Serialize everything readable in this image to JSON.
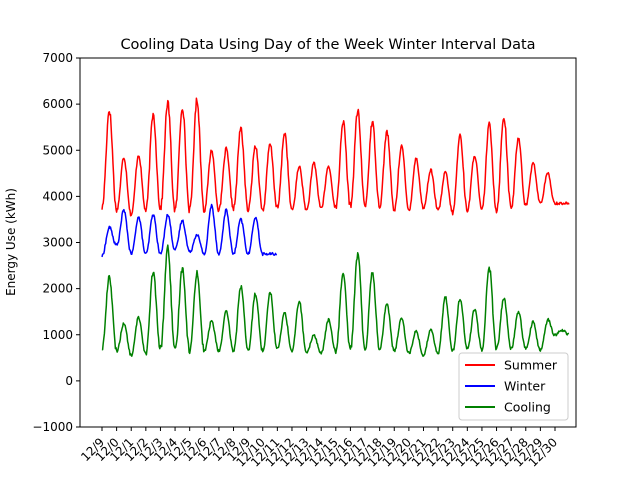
{
  "chart_data": {
    "type": "line",
    "title": "Cooling Data Using Day of the Week Winter Interval Data",
    "xlabel": "",
    "ylabel": "Energy Use (kWh)",
    "ylim": [
      -1000,
      7000
    ],
    "yticks": [
      -1000,
      0,
      1000,
      2000,
      3000,
      4000,
      5000,
      6000,
      7000
    ],
    "xticks": [
      "12/9",
      "12/0",
      "12/1",
      "12/2",
      "12/3",
      "12/4",
      "12/5",
      "12/6",
      "12/7",
      "12/8",
      "12/9",
      "12/10",
      "12/11",
      "12/12",
      "12/13",
      "12/14",
      "12/15",
      "12/16",
      "12/17",
      "12/18",
      "12/19",
      "12/20",
      "12/21",
      "12/22",
      "12/23",
      "12/24",
      "12/25",
      "12/26",
      "12/27",
      "12/28",
      "12/29",
      "12/30"
    ],
    "x_unit": "day",
    "grid": false,
    "legend_position": "lower-right",
    "series": [
      {
        "name": "Summer",
        "color": "#ff0000",
        "x_day_index": [
          0,
          1,
          2,
          3,
          4,
          5,
          6,
          7,
          8,
          9,
          10,
          11,
          12,
          13,
          14,
          15,
          16,
          17,
          18,
          19,
          20,
          21,
          22,
          23,
          24,
          25,
          26,
          27,
          28,
          29,
          30,
          31
        ],
        "daily_min": [
          3750,
          3700,
          3600,
          3700,
          3750,
          3700,
          3700,
          3700,
          3700,
          3750,
          3700,
          3700,
          3750,
          3700,
          3700,
          3750,
          3750,
          3800,
          3800,
          3800,
          3700,
          3700,
          3750,
          3700,
          3650,
          3700,
          3700,
          3700,
          3750,
          3800,
          3850,
          3850
        ],
        "daily_peak": [
          5900,
          4900,
          4850,
          5750,
          6050,
          5950,
          6100,
          5000,
          5000,
          5500,
          5100,
          5100,
          5400,
          4650,
          4700,
          4650,
          5600,
          5850,
          5600,
          5450,
          5100,
          4800,
          4600,
          4550,
          5300,
          4900,
          5550,
          5700,
          5250,
          4700,
          4500,
          3850
        ]
      },
      {
        "name": "Winter",
        "color": "#0000ff",
        "x_day_index": [
          0,
          1,
          2,
          3,
          4,
          5,
          6,
          7,
          8,
          9,
          10,
          11
        ],
        "daily_min": [
          2700,
          2950,
          2750,
          2750,
          2750,
          2850,
          2800,
          2750,
          2750,
          2750,
          2750,
          2750
        ],
        "daily_peak": [
          3200,
          3800,
          3550,
          3600,
          3550,
          3500,
          3200,
          3800,
          3700,
          3500,
          3550,
          2750
        ]
      },
      {
        "name": "Cooling",
        "color": "#008000",
        "x_day_index": [
          0,
          1,
          2,
          3,
          4,
          5,
          6,
          7,
          8,
          9,
          10,
          11,
          12,
          13,
          14,
          15,
          16,
          17,
          18,
          19,
          20,
          21,
          22,
          23,
          24,
          25,
          26,
          27,
          28,
          29,
          30,
          31
        ],
        "daily_min": [
          700,
          650,
          550,
          600,
          700,
          650,
          650,
          650,
          650,
          650,
          650,
          650,
          700,
          650,
          600,
          600,
          650,
          700,
          700,
          700,
          650,
          600,
          550,
          600,
          650,
          700,
          700,
          700,
          700,
          700,
          650,
          1000
        ],
        "daily_peak": [
          2300,
          1300,
          1350,
          2300,
          2900,
          2450,
          2350,
          1300,
          1500,
          2050,
          1900,
          1900,
          1500,
          1750,
          1000,
          1300,
          2350,
          2750,
          2350,
          1700,
          1400,
          1100,
          1100,
          1800,
          1750,
          1550,
          2450,
          1800,
          1500,
          1300,
          1150,
          1100
        ]
      }
    ]
  }
}
